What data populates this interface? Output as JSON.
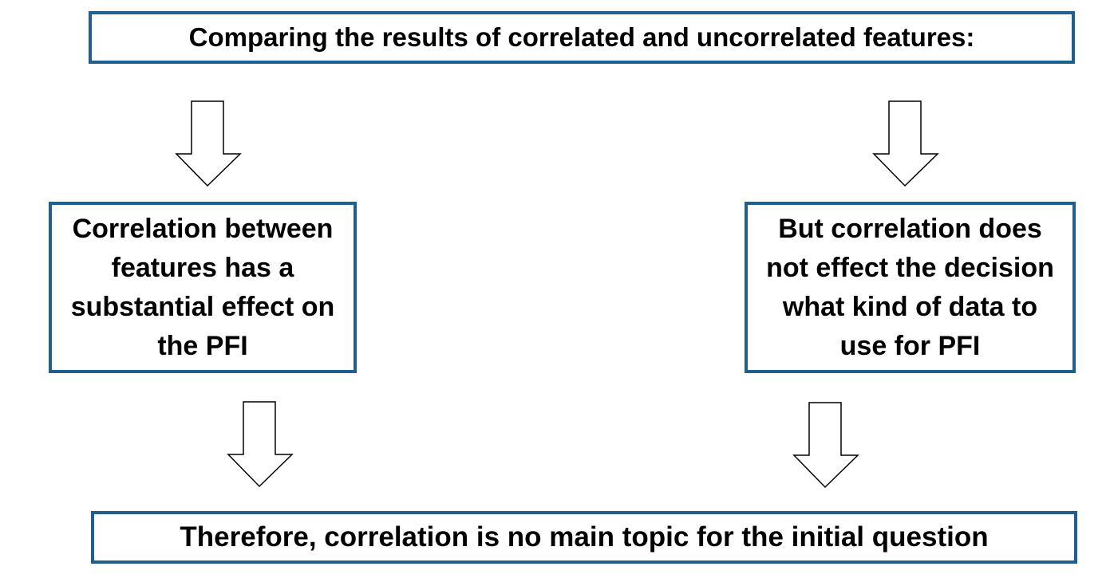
{
  "diagram": {
    "top_box": {
      "text": "Comparing the results of correlated and uncorrelated features:"
    },
    "left_box": {
      "text": "Correlation between features has a substantial effect on the PFI"
    },
    "right_box": {
      "text": "But correlation does not effect the decision what kind of data to use for PFI"
    },
    "bottom_box": {
      "text": "Therefore, correlation is no main topic for the initial question"
    },
    "arrows": [
      {
        "icon": "arrow-down-icon"
      },
      {
        "icon": "arrow-down-icon"
      },
      {
        "icon": "arrow-down-icon"
      },
      {
        "icon": "arrow-down-icon"
      }
    ],
    "colors": {
      "box_border": "#1f5f8f",
      "arrow_stroke": "#000000",
      "text": "#000000"
    }
  }
}
